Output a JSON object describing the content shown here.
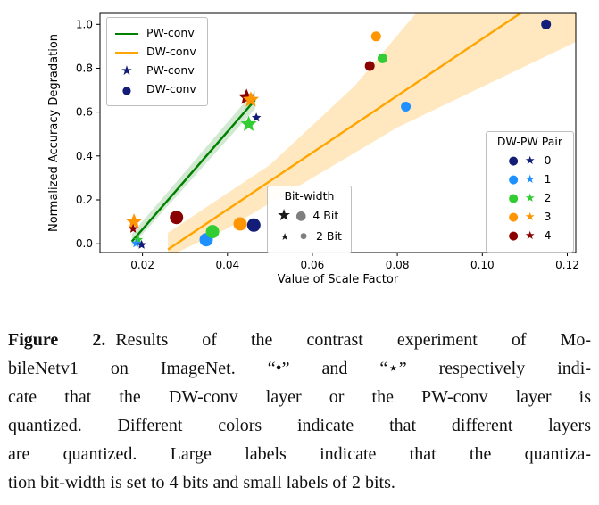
{
  "icons": {
    "star": "★",
    "dot": "●"
  },
  "chart_data": {
    "type": "scatter",
    "xlabel": "Value of Scale Factor",
    "ylabel": "Normalized Accuracy Degradation",
    "xlim": [
      0.01,
      0.122
    ],
    "ylim": [
      -0.04,
      1.05
    ],
    "xticks": [
      0.02,
      0.04,
      0.06,
      0.08,
      0.1,
      0.12
    ],
    "xtick_labels": [
      "0.02",
      "0.04",
      "0.06",
      "0.08",
      "0.10",
      "0.12"
    ],
    "yticks": [
      0.0,
      0.2,
      0.4,
      0.6,
      0.8,
      1.0
    ],
    "ytick_labels": [
      "0.0",
      "0.2",
      "0.4",
      "0.6",
      "0.8",
      "1.0"
    ],
    "palette": {
      "0": "#131c77",
      "1": "#1e90ff",
      "2": "#32cd32",
      "3": "#ff9500",
      "4": "#8b0000"
    },
    "trend_lines": [
      {
        "name": "PW-conv",
        "color": "#008000",
        "x": [
          0.0175,
          0.0465
        ],
        "y": [
          0.01,
          0.655
        ],
        "band": [
          [
            0.0175,
            -0.01
          ],
          [
            0.0465,
            0.615
          ],
          [
            0.0465,
            0.7
          ],
          [
            0.0175,
            0.045
          ]
        ],
        "band_color": "#008000",
        "band_opacity": 0.18
      },
      {
        "name": "DW-conv",
        "color": "#ffa500",
        "x": [
          0.026,
          0.122
        ],
        "y": [
          -0.026,
          1.22
        ],
        "band": [
          [
            0.026,
            -0.06
          ],
          [
            0.04,
            0.07
          ],
          [
            0.06,
            0.3
          ],
          [
            0.08,
            0.53
          ],
          [
            0.122,
            0.92
          ],
          [
            0.122,
            1.45
          ],
          [
            0.09,
            1.18
          ],
          [
            0.07,
            0.72
          ],
          [
            0.05,
            0.36
          ],
          [
            0.026,
            0.05
          ]
        ],
        "band_color": "#ffa500",
        "band_opacity": 0.25
      }
    ],
    "points": [
      {
        "pair": "3",
        "marker": "star",
        "bits": 4,
        "x": 0.018,
        "y": 0.1
      },
      {
        "pair": "4",
        "marker": "star",
        "bits": 2,
        "x": 0.0178,
        "y": 0.068
      },
      {
        "pair": "2",
        "marker": "star",
        "bits": 2,
        "x": 0.019,
        "y": 0.018
      },
      {
        "pair": "1",
        "marker": "star",
        "bits": 2,
        "x": 0.0185,
        "y": 0.002
      },
      {
        "pair": "0",
        "marker": "star",
        "bits": 2,
        "x": 0.0198,
        "y": -0.005
      },
      {
        "pair": "4",
        "marker": "circle",
        "bits": 4,
        "x": 0.028,
        "y": 0.12
      },
      {
        "pair": "1",
        "marker": "circle",
        "bits": 4,
        "x": 0.035,
        "y": 0.018
      },
      {
        "pair": "2",
        "marker": "circle",
        "bits": 4,
        "x": 0.0365,
        "y": 0.055
      },
      {
        "pair": "3",
        "marker": "circle",
        "bits": 4,
        "x": 0.043,
        "y": 0.09
      },
      {
        "pair": "0",
        "marker": "circle",
        "bits": 4,
        "x": 0.0462,
        "y": 0.085
      },
      {
        "pair": "2",
        "marker": "star",
        "bits": 4,
        "x": 0.045,
        "y": 0.545
      },
      {
        "pair": "0",
        "marker": "star",
        "bits": 2,
        "x": 0.0468,
        "y": 0.575
      },
      {
        "pair": "4",
        "marker": "star",
        "bits": 4,
        "x": 0.0445,
        "y": 0.668
      },
      {
        "pair": "3",
        "marker": "star",
        "bits": 4,
        "x": 0.0455,
        "y": 0.656
      },
      {
        "pair": "4",
        "marker": "circle",
        "bits": 2,
        "x": 0.0735,
        "y": 0.81
      },
      {
        "pair": "3",
        "marker": "circle",
        "bits": 2,
        "x": 0.075,
        "y": 0.945
      },
      {
        "pair": "2",
        "marker": "circle",
        "bits": 2,
        "x": 0.0765,
        "y": 0.845
      },
      {
        "pair": "1",
        "marker": "circle",
        "bits": 2,
        "x": 0.082,
        "y": 0.625
      },
      {
        "pair": "0",
        "marker": "circle",
        "bits": 2,
        "x": 0.115,
        "y": 1.0
      }
    ]
  },
  "legends": {
    "series": [
      {
        "label": "PW-conv"
      },
      {
        "label": "DW-conv"
      },
      {
        "label": "PW-conv"
      },
      {
        "label": "DW-conv"
      }
    ],
    "bitwidth": {
      "title": "Bit-width",
      "items": [
        {
          "label": "4 Bit"
        },
        {
          "label": "2 Bit"
        }
      ]
    },
    "pairs": {
      "title": "DW-PW Pair",
      "items": [
        {
          "label": "0"
        },
        {
          "label": "1"
        },
        {
          "label": "2"
        },
        {
          "label": "3"
        },
        {
          "label": "4"
        }
      ]
    }
  },
  "caption": {
    "label": "Figure 2.",
    "lines": [
      "Results of the contrast experiment of Mo-",
      "bileNetv1 on ImageNet. “•” and “⋆” respectively indi-",
      "cate that the DW-conv layer or the PW-conv layer is",
      "quantized. Different colors indicate that different layers",
      "are quantized. Large labels indicate that the quantiza-",
      "tion bit-width is set to 4 bits and small labels of 2 bits."
    ]
  }
}
